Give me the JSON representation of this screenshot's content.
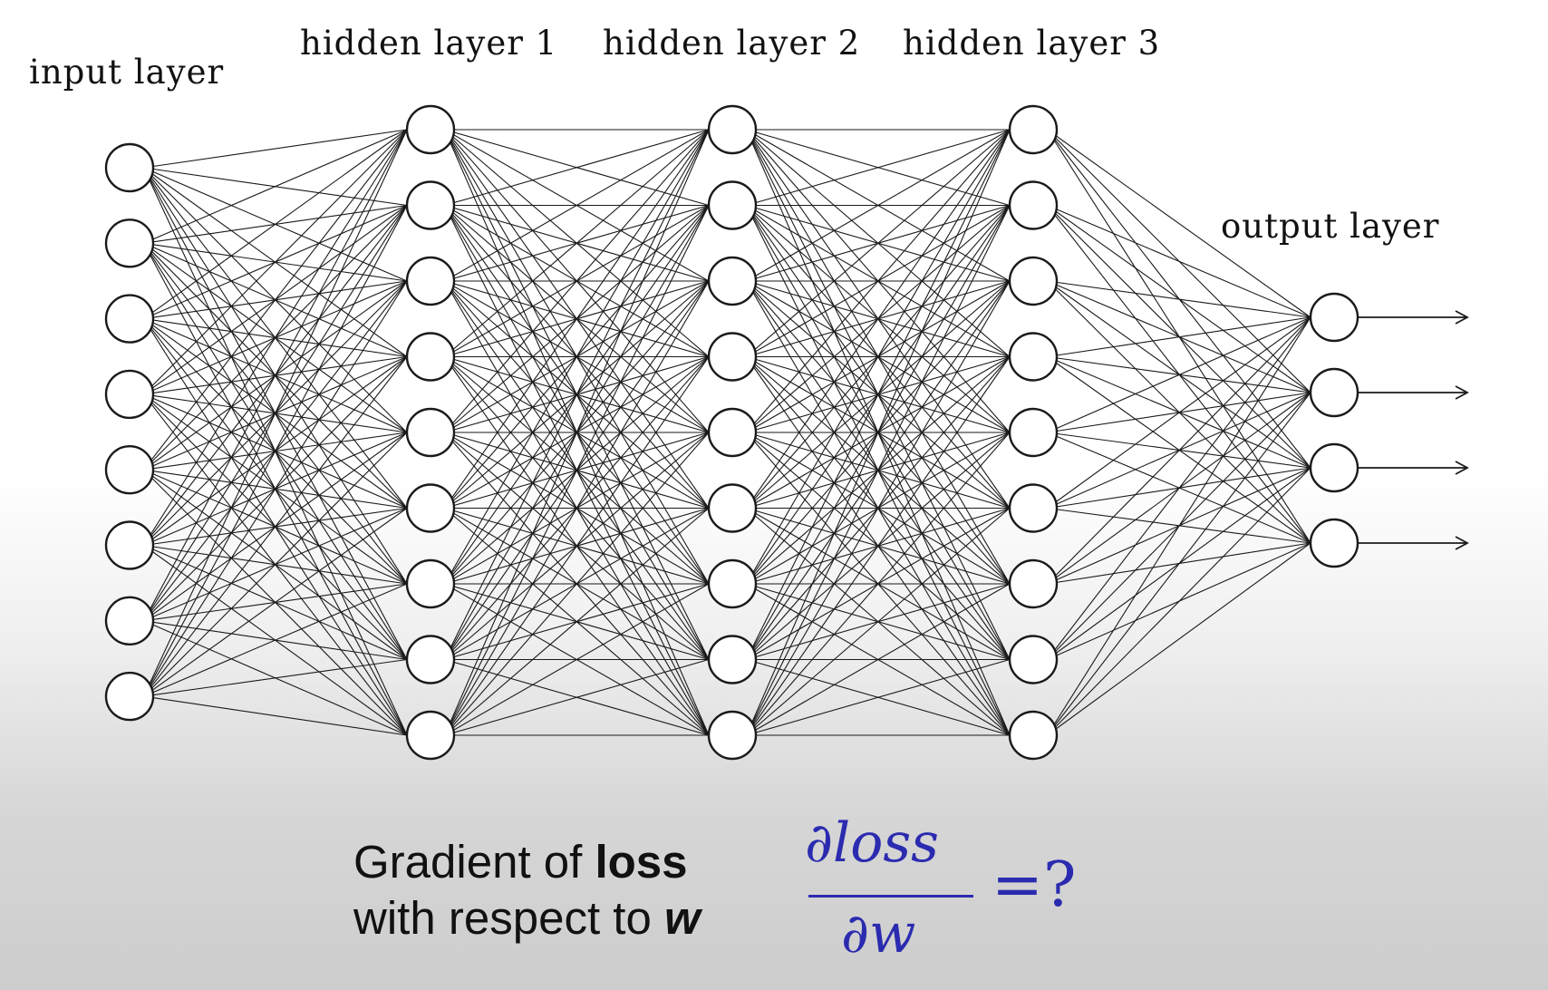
{
  "layers": [
    {
      "label": "input layer",
      "nodes": 8
    },
    {
      "label": "hidden layer 1",
      "nodes": 9
    },
    {
      "label": "hidden layer 2",
      "nodes": 9
    },
    {
      "label": "hidden layer 3",
      "nodes": 9
    },
    {
      "label": "output layer",
      "nodes": 4
    }
  ],
  "caption": {
    "line1_prefix": "Gradient of ",
    "line1_bold": "loss",
    "line2_prefix": "with respect to ",
    "line2_bold_italic": "w"
  },
  "formula": {
    "numerator": "∂loss",
    "denominator": "∂w",
    "equals": "=?"
  },
  "colors": {
    "formula": "#2b2bb0",
    "lines": "#1a1a1a"
  }
}
